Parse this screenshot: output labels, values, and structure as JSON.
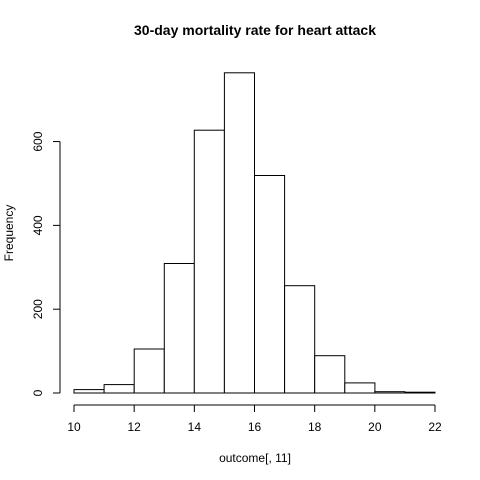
{
  "chart_data": {
    "type": "bar",
    "title": "30-day mortality rate for heart attack",
    "xlabel": "outcome[, 11]",
    "ylabel": "Frequency",
    "bins": [
      {
        "start": 10,
        "end": 11,
        "count": 8
      },
      {
        "start": 11,
        "end": 12,
        "count": 20
      },
      {
        "start": 12,
        "end": 13,
        "count": 105
      },
      {
        "start": 13,
        "end": 14,
        "count": 309
      },
      {
        "start": 14,
        "end": 15,
        "count": 627
      },
      {
        "start": 15,
        "end": 16,
        "count": 764
      },
      {
        "start": 16,
        "end": 17,
        "count": 519
      },
      {
        "start": 17,
        "end": 18,
        "count": 256
      },
      {
        "start": 18,
        "end": 19,
        "count": 89
      },
      {
        "start": 19,
        "end": 20,
        "count": 24
      },
      {
        "start": 20,
        "end": 21,
        "count": 3
      },
      {
        "start": 21,
        "end": 22,
        "count": 2
      }
    ],
    "xlim": [
      10,
      22
    ],
    "ylim": [
      0,
      780
    ],
    "x_ticks": [
      10,
      12,
      14,
      16,
      18,
      20,
      22
    ],
    "y_ticks": [
      0,
      200,
      400,
      600
    ],
    "grid": false,
    "colors": {
      "bar_fill": "#ffffff",
      "bar_stroke": "#000000"
    }
  }
}
